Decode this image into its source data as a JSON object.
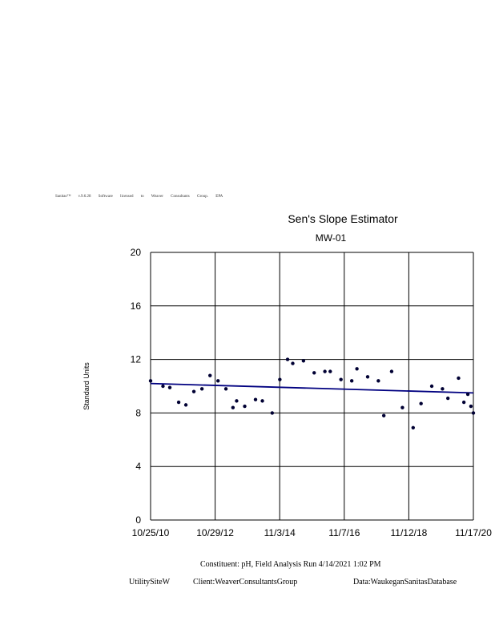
{
  "banner": "Sanitas™ v.9.6.28 Software licensed to Weaver Consultants Group. EPA",
  "footer": {
    "constituent": "Constituent:      pH,  Field      Analysis     Run    4/14/2021      1:02    PM",
    "site": "UtilitySiteW",
    "client": "Client:WeaverConsultantsGroup",
    "data": "Data:WaukeganSanitasDatabase"
  },
  "colors": {
    "trend": "#000080",
    "points": "#000033",
    "grid": "#000000"
  },
  "chart_data": {
    "type": "scatter",
    "title": "Sen's Slope Estimator",
    "subtitle": "MW-01",
    "ylabel": "Standard Units",
    "ylim": [
      0,
      20
    ],
    "yticks": [
      0,
      4,
      8,
      12,
      16,
      20
    ],
    "xlim": [
      "2010-10-25",
      "2020-11-17"
    ],
    "xticks": [
      "10/25/10",
      "10/29/12",
      "11/3/14",
      "11/7/16",
      "11/12/18",
      "11/17/20"
    ],
    "grid": true,
    "series": [
      {
        "points": [
          [
            "2010-10-25",
            10.4
          ],
          [
            "2011-03-15",
            10.0
          ],
          [
            "2011-06-01",
            9.9
          ],
          [
            "2011-09-10",
            8.8
          ],
          [
            "2011-12-01",
            8.6
          ],
          [
            "2012-03-01",
            9.6
          ],
          [
            "2012-06-01",
            9.8
          ],
          [
            "2012-09-01",
            10.8
          ],
          [
            "2012-12-01",
            10.4
          ],
          [
            "2013-03-01",
            9.8
          ],
          [
            "2013-05-20",
            8.4
          ],
          [
            "2013-07-01",
            8.9
          ],
          [
            "2013-10-01",
            8.5
          ],
          [
            "2014-02-01",
            9.0
          ],
          [
            "2014-04-20",
            8.9
          ],
          [
            "2014-08-10",
            8.0
          ],
          [
            "2014-11-05",
            10.5
          ],
          [
            "2015-02-01",
            12.0
          ],
          [
            "2015-04-01",
            11.7
          ],
          [
            "2015-08-01",
            11.9
          ],
          [
            "2015-12-01",
            11.0
          ],
          [
            "2016-04-01",
            11.1
          ],
          [
            "2016-06-01",
            11.1
          ],
          [
            "2016-10-01",
            10.5
          ],
          [
            "2017-02-01",
            10.4
          ],
          [
            "2017-04-01",
            11.3
          ],
          [
            "2017-08-01",
            10.7
          ],
          [
            "2017-12-01",
            10.4
          ],
          [
            "2018-02-01",
            7.8
          ],
          [
            "2018-05-01",
            11.1
          ],
          [
            "2018-09-01",
            8.4
          ],
          [
            "2019-01-01",
            6.9
          ],
          [
            "2019-04-01",
            8.7
          ],
          [
            "2019-08-01",
            10.0
          ],
          [
            "2019-12-01",
            9.8
          ],
          [
            "2020-02-01",
            9.1
          ],
          [
            "2020-06-01",
            10.6
          ],
          [
            "2020-08-01",
            8.8
          ],
          [
            "2020-09-15",
            9.4
          ],
          [
            "2020-10-20",
            8.5
          ],
          [
            "2020-11-17",
            8.0
          ]
        ]
      }
    ],
    "trend_line": {
      "start": [
        "2010-10-25",
        10.2
      ],
      "end": [
        "2020-11-17",
        9.5
      ]
    }
  }
}
